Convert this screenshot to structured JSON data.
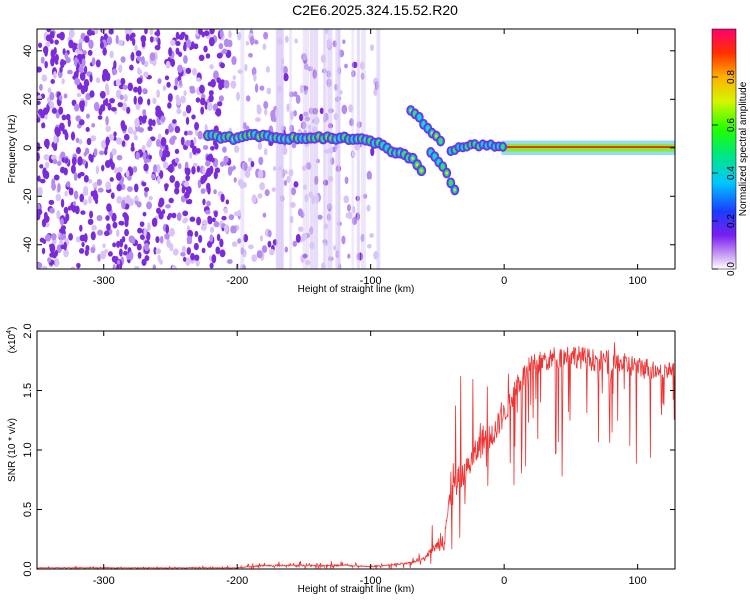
{
  "title": "C2E6.2025.324.15.52.R20",
  "colors": {
    "spectrogram_low": "#7b2bd9",
    "spectrogram_high": "#ff0000",
    "snr_line": "#ee3333"
  },
  "chart_data": [
    {
      "type": "heatmap",
      "title": "C2E6.2025.324.15.52.R20",
      "xlabel": "Height of straight line (km)",
      "ylabel": "Frequency (Hz)",
      "xlim": [
        -350,
        128
      ],
      "ylim": [
        -50,
        49
      ],
      "xticks": [
        -300,
        -200,
        -100,
        0,
        100
      ],
      "yticks": [
        -40,
        -20,
        0,
        20,
        40
      ],
      "noise_region_x": [
        -350,
        -95
      ],
      "main_trace": {
        "x": [
          -222,
          -210,
          -200,
          -190,
          -180,
          -170,
          -160,
          -150,
          -140,
          -130,
          -120,
          -110,
          -100,
          -95,
          -90,
          -85,
          -80,
          -75,
          -70,
          -65,
          -60
        ],
        "y": [
          5,
          4,
          4,
          5,
          5,
          4,
          4,
          4,
          4,
          4,
          4,
          4,
          3,
          2,
          1,
          -1,
          -2,
          -3,
          -4,
          -7,
          -10
        ]
      },
      "upper_branch": {
        "x": [
          -70,
          -65,
          -60,
          -55,
          -50,
          -45
        ],
        "y": [
          15,
          13,
          10,
          6,
          4,
          2
        ]
      },
      "lower_branch": {
        "x": [
          -55,
          -50,
          -45,
          -40,
          -37
        ],
        "y": [
          -2,
          -5,
          -9,
          -14,
          -17
        ]
      },
      "tail": {
        "x": [
          -40,
          -30,
          -20,
          -10,
          0,
          20,
          60,
          128
        ],
        "y": [
          -1,
          1,
          1,
          1,
          1,
          0.5,
          0.3,
          0.3
        ]
      },
      "colorbar": {
        "label": "Normalized spectral amplitude",
        "ticks": [
          0.0,
          0.2,
          0.4,
          0.6,
          0.8
        ],
        "range": [
          0,
          1
        ]
      }
    },
    {
      "type": "line",
      "xlabel": "Height of straight line (km)",
      "ylabel": "SNR (10 * v/v)",
      "y_multiplier": "(x10",
      "y_multiplier_exp": "4",
      "xlim": [
        -350,
        128
      ],
      "ylim": [
        0,
        2.0
      ],
      "xticks": [
        -300,
        -200,
        -100,
        0,
        100
      ],
      "yticks": [
        0.0,
        0.5,
        1.0,
        1.5,
        2.0
      ],
      "series": [
        {
          "x": [
            -350,
            -300,
            -250,
            -200,
            -180,
            -150,
            -120,
            -100,
            -80,
            -70,
            -60,
            -50,
            -45,
            -40,
            -35,
            -30,
            -25,
            -20,
            -15,
            -10,
            -5,
            0,
            10,
            20,
            30,
            40,
            50,
            60,
            70,
            80,
            90,
            100,
            110,
            120,
            128
          ],
          "y": [
            0.01,
            0.01,
            0.01,
            0.01,
            0.03,
            0.03,
            0.03,
            0.02,
            0.04,
            0.05,
            0.1,
            0.2,
            0.3,
            0.6,
            0.7,
            0.8,
            0.9,
            1.0,
            1.1,
            1.1,
            1.2,
            1.3,
            1.55,
            1.7,
            1.75,
            1.78,
            1.8,
            1.77,
            1.75,
            1.73,
            1.72,
            1.7,
            1.68,
            1.67,
            1.67
          ],
          "envelope_low": [
            0.0,
            0.0,
            0.0,
            0.0,
            0.0,
            0.0,
            0.0,
            0.0,
            0.0,
            0.0,
            0.02,
            0.05,
            0.05,
            0.1,
            0.2,
            0.3,
            0.4,
            0.3,
            0.5,
            0.4,
            0.3,
            0.5,
            0.6,
            0.7,
            0.75,
            0.75,
            0.75,
            0.75,
            0.75,
            0.72,
            0.72,
            0.7,
            0.7,
            0.9,
            1.05
          ],
          "envelope_high": [
            0.02,
            0.02,
            0.02,
            0.03,
            0.07,
            0.07,
            0.07,
            0.05,
            0.08,
            0.1,
            0.2,
            0.5,
            1.9,
            1.5,
            1.95,
            1.3,
            1.8,
            1.5,
            2.0,
            1.7,
            1.5,
            1.6,
            1.75,
            1.8,
            1.85,
            1.85,
            1.85,
            1.82,
            1.8,
            1.95,
            1.78,
            1.76,
            1.75,
            1.72,
            1.72
          ]
        }
      ]
    }
  ]
}
